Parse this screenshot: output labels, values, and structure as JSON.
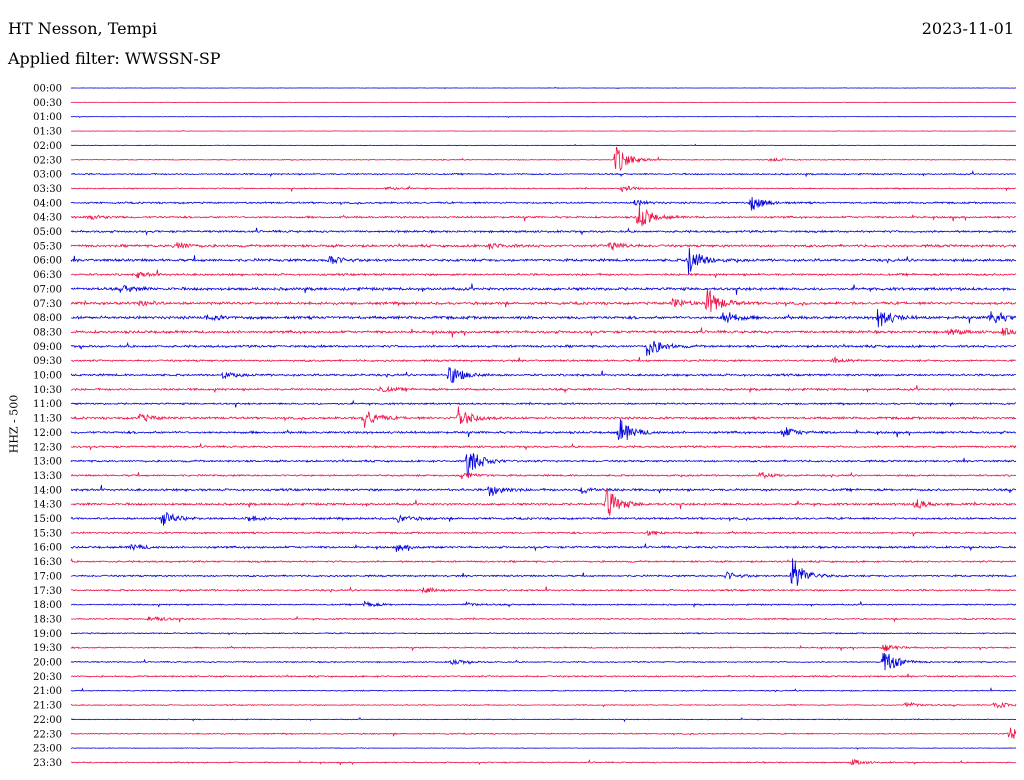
{
  "header": {
    "station": "HT Nesson, Tempi",
    "date": "2023-11-01",
    "filter": "Applied filter: WWSSN-SP"
  },
  "chart_data": {
    "type": "line",
    "subtype": "helicorder",
    "ylabel": "HHZ - 500",
    "colors": [
      "#0000dd",
      "#ee1144"
    ],
    "tick_labels": [
      "00:00",
      "00:30",
      "01:00",
      "01:30",
      "02:00",
      "02:30",
      "03:00",
      "03:30",
      "04:00",
      "04:30",
      "05:00",
      "05:30",
      "06:00",
      "06:30",
      "07:00",
      "07:30",
      "08:00",
      "08:30",
      "09:00",
      "09:30",
      "10:00",
      "10:30",
      "11:00",
      "11:30",
      "12:00",
      "12:30",
      "13:00",
      "13:30",
      "14:00",
      "14:30",
      "15:00",
      "15:30",
      "16:00",
      "16:30",
      "17:00",
      "17:30",
      "18:00",
      "18:30",
      "19:00",
      "19:30",
      "20:00",
      "20:30",
      "21:00",
      "21:30",
      "22:00",
      "22:30",
      "23:00",
      "23:30"
    ],
    "row_noise": [
      0.2,
      0.2,
      0.2,
      0.25,
      0.3,
      0.5,
      0.8,
      0.7,
      1.0,
      1.1,
      1.2,
      1.4,
      1.5,
      1.2,
      1.6,
      1.5,
      1.6,
      1.5,
      1.3,
      1.1,
      1.2,
      1.2,
      1.0,
      1.3,
      1.3,
      1.1,
      1.1,
      1.0,
      1.3,
      1.3,
      1.2,
      1.0,
      1.2,
      1.0,
      1.0,
      1.0,
      0.8,
      0.8,
      0.7,
      0.8,
      0.7,
      0.9,
      0.6,
      0.6,
      0.5,
      0.7,
      0.3,
      0.7
    ],
    "events": [
      {
        "row": 5,
        "minute": 17.3,
        "amplitude": 15
      },
      {
        "row": 5,
        "minute": 22.2,
        "amplitude": 2
      },
      {
        "row": 7,
        "minute": 17.5,
        "amplitude": 3
      },
      {
        "row": 7,
        "minute": 10.0,
        "amplitude": 2
      },
      {
        "row": 8,
        "minute": 21.6,
        "amplitude": 8
      },
      {
        "row": 8,
        "minute": 17.9,
        "amplitude": 3
      },
      {
        "row": 9,
        "minute": 18.0,
        "amplitude": 14
      },
      {
        "row": 9,
        "minute": 0.6,
        "amplitude": 3
      },
      {
        "row": 11,
        "minute": 3.3,
        "amplitude": 5
      },
      {
        "row": 11,
        "minute": 17.1,
        "amplitude": 5
      },
      {
        "row": 11,
        "minute": 13.3,
        "amplitude": 3
      },
      {
        "row": 12,
        "minute": 19.6,
        "amplitude": 15
      },
      {
        "row": 12,
        "minute": 8.2,
        "amplitude": 5
      },
      {
        "row": 13,
        "minute": 2.1,
        "amplitude": 3
      },
      {
        "row": 14,
        "minute": 1.7,
        "amplitude": 3
      },
      {
        "row": 15,
        "minute": 20.2,
        "amplitude": 15
      },
      {
        "row": 15,
        "minute": 19.1,
        "amplitude": 5
      },
      {
        "row": 15,
        "minute": 2.2,
        "amplitude": 3
      },
      {
        "row": 16,
        "minute": 20.7,
        "amplitude": 8
      },
      {
        "row": 16,
        "minute": 25.6,
        "amplitude": 12
      },
      {
        "row": 16,
        "minute": 29.2,
        "amplitude": 8
      },
      {
        "row": 16,
        "minute": 4.3,
        "amplitude": 3
      },
      {
        "row": 17,
        "minute": 29.6,
        "amplitude": 4
      },
      {
        "row": 17,
        "minute": 27.9,
        "amplitude": 3
      },
      {
        "row": 18,
        "minute": 18.3,
        "amplitude": 12
      },
      {
        "row": 19,
        "minute": 24.2,
        "amplitude": 3
      },
      {
        "row": 20,
        "minute": 12.0,
        "amplitude": 11
      },
      {
        "row": 20,
        "minute": 4.8,
        "amplitude": 3
      },
      {
        "row": 21,
        "minute": 9.8,
        "amplitude": 3
      },
      {
        "row": 23,
        "minute": 12.3,
        "amplitude": 12
      },
      {
        "row": 23,
        "minute": 9.3,
        "amplitude": 10
      },
      {
        "row": 23,
        "minute": 2.2,
        "amplitude": 4
      },
      {
        "row": 24,
        "minute": 17.4,
        "amplitude": 14
      },
      {
        "row": 24,
        "minute": 22.6,
        "amplitude": 6
      },
      {
        "row": 26,
        "minute": 12.6,
        "amplitude": 17
      },
      {
        "row": 27,
        "minute": 12.4,
        "amplitude": 4
      },
      {
        "row": 27,
        "minute": 21.9,
        "amplitude": 3
      },
      {
        "row": 28,
        "minute": 13.3,
        "amplitude": 7
      },
      {
        "row": 28,
        "minute": 16.2,
        "amplitude": 4
      },
      {
        "row": 29,
        "minute": 17.0,
        "amplitude": 16
      },
      {
        "row": 29,
        "minute": 26.8,
        "amplitude": 5
      },
      {
        "row": 30,
        "minute": 2.9,
        "amplitude": 8
      },
      {
        "row": 30,
        "minute": 5.6,
        "amplitude": 3
      },
      {
        "row": 30,
        "minute": 10.4,
        "amplitude": 4
      },
      {
        "row": 31,
        "minute": 18.3,
        "amplitude": 3
      },
      {
        "row": 32,
        "minute": 1.9,
        "amplitude": 3
      },
      {
        "row": 32,
        "minute": 10.4,
        "amplitude": 3
      },
      {
        "row": 34,
        "minute": 22.9,
        "amplitude": 18
      },
      {
        "row": 34,
        "minute": 20.8,
        "amplitude": 4
      },
      {
        "row": 35,
        "minute": 11.2,
        "amplitude": 3
      },
      {
        "row": 36,
        "minute": 9.3,
        "amplitude": 3
      },
      {
        "row": 36,
        "minute": 12.5,
        "amplitude": 2
      },
      {
        "row": 37,
        "minute": 2.5,
        "amplitude": 4
      },
      {
        "row": 39,
        "minute": 25.8,
        "amplitude": 4
      },
      {
        "row": 40,
        "minute": 25.8,
        "amplitude": 14
      },
      {
        "row": 40,
        "minute": 12.1,
        "amplitude": 3
      },
      {
        "row": 43,
        "minute": 29.3,
        "amplitude": 5
      },
      {
        "row": 43,
        "minute": 26.5,
        "amplitude": 3
      },
      {
        "row": 45,
        "minute": 29.8,
        "amplitude": 7
      },
      {
        "row": 47,
        "minute": 24.8,
        "amplitude": 3
      }
    ]
  }
}
